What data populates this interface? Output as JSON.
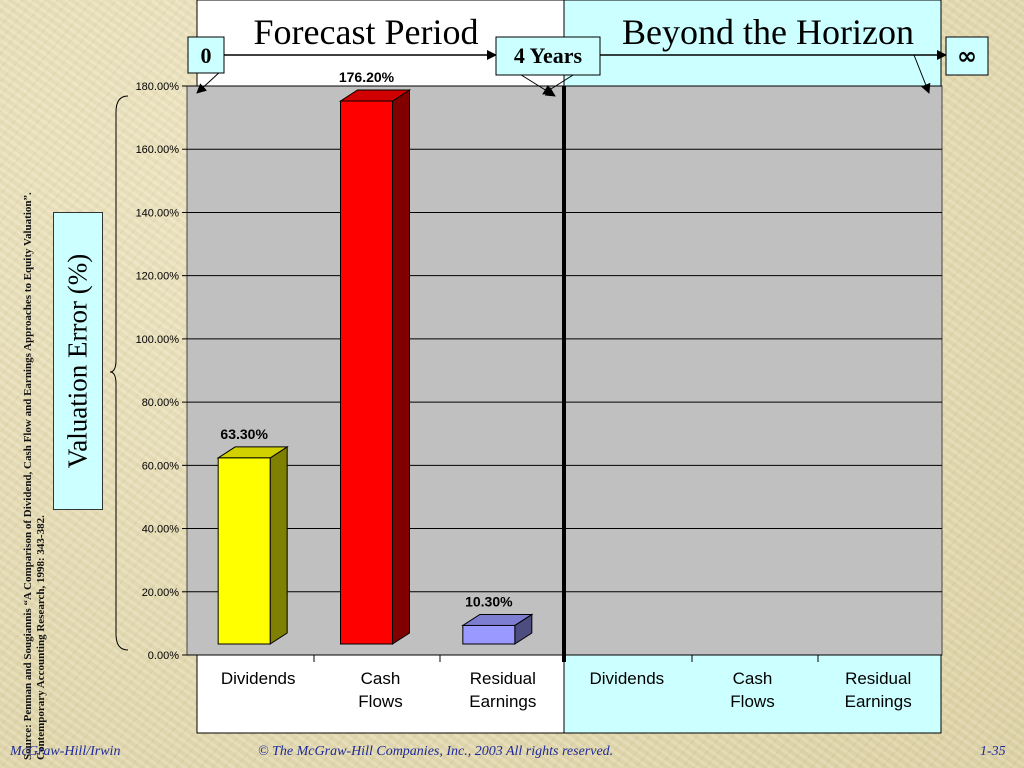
{
  "chart_data": {
    "type": "bar",
    "ylabel": "Valuation Error (%)",
    "ylim": [
      0,
      180
    ],
    "y_ticks": [
      "0.00%",
      "20.00%",
      "40.00%",
      "60.00%",
      "80.00%",
      "100.00%",
      "120.00%",
      "140.00%",
      "160.00%",
      "180.00%"
    ],
    "grid": true,
    "regions": [
      {
        "title": "Forecast Period",
        "categories": [
          "Dividends",
          "Cash Flows",
          "Residual Earnings"
        ],
        "values": [
          63.3,
          176.2,
          10.3
        ],
        "value_labels": [
          "63.30%",
          "176.20%",
          "10.30%"
        ],
        "colors": [
          "#ffff00",
          "#ff0000",
          "#9999ff"
        ]
      },
      {
        "title": "Beyond the Horizon",
        "categories": [
          "Dividends",
          "Cash Flows",
          "Residual Earnings"
        ],
        "values": [
          null,
          null,
          null
        ]
      }
    ],
    "timeline_markers": [
      "0",
      "4 Years",
      "∞"
    ]
  },
  "colors": {
    "plot_bg": "#c0c0c0",
    "horizon_bg": "#ccffff",
    "text_blue": "#1e2a9a"
  },
  "source_note": "Source: Penman and Sougiannis “A Comparison of Dividend, Cash Flow and Earnings Approaches to Equity Valuation”. Contemporary Accounting Research, 1998: 343-382.",
  "footer": {
    "left": "McGraw-Hill/Irwin",
    "center": "© The McGraw-Hill Companies, Inc., 2003 All rights reserved.",
    "right": "1-35"
  }
}
